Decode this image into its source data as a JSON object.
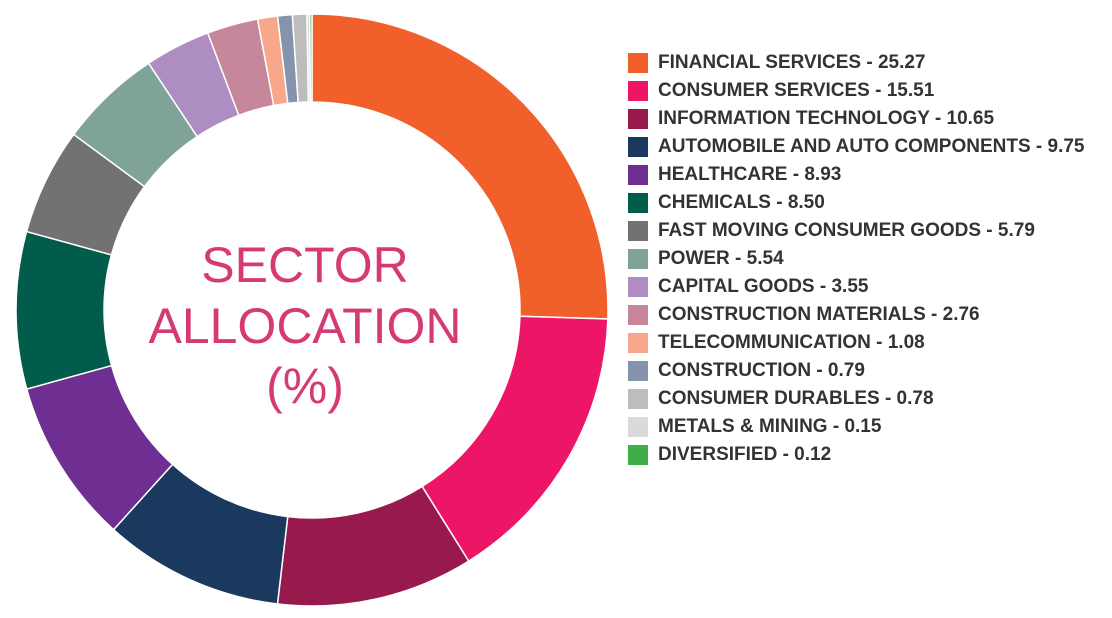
{
  "chart_data": {
    "type": "pie",
    "title": "",
    "center_label": [
      "SECTOR",
      "ALLOCATION",
      "(%)"
    ],
    "legend_position": "right",
    "slices": [
      {
        "label": "FINANCIAL SERVICES - 25.27",
        "value": 25.27,
        "color": "#f15f2a"
      },
      {
        "label": "CONSUMER SERVICES - 15.51",
        "value": 15.51,
        "color": "#ec1566"
      },
      {
        "label": "INFORMATION TECHNOLOGY - 10.65",
        "value": 10.65,
        "color": "#981a4c"
      },
      {
        "label": "AUTOMOBILE AND AUTO COMPONENTS - 9.75",
        "value": 9.75,
        "color": "#1b385f"
      },
      {
        "label": "HEALTHCARE - 8.93",
        "value": 8.93,
        "color": "#6f2e91"
      },
      {
        "label": "CHEMICALS - 8.50",
        "value": 8.5,
        "color": "#015c4c"
      },
      {
        "label": "FAST MOVING CONSUMER GOODS - 5.79",
        "value": 5.79,
        "color": "#727272"
      },
      {
        "label": "POWER - 5.54",
        "value": 5.54,
        "color": "#7fa398"
      },
      {
        "label": "CAPITAL GOODS - 3.55",
        "value": 3.55,
        "color": "#ae8dc3"
      },
      {
        "label": "CONSTRUCTION MATERIALS - 2.76",
        "value": 2.76,
        "color": "#c7879a"
      },
      {
        "label": "TELECOMMUNICATION - 1.08",
        "value": 1.08,
        "color": "#f9a78b"
      },
      {
        "label": "CONSTRUCTION - 0.79",
        "value": 0.79,
        "color": "#8593ad"
      },
      {
        "label": "CONSUMER DURABLES - 0.78",
        "value": 0.78,
        "color": "#bdbdbd"
      },
      {
        "label": "METALS & MINING - 0.15",
        "value": 0.15,
        "color": "#dadada"
      },
      {
        "label": "DIVERSIFIED - 0.12",
        "value": 0.12,
        "color": "#3fae49"
      }
    ]
  }
}
